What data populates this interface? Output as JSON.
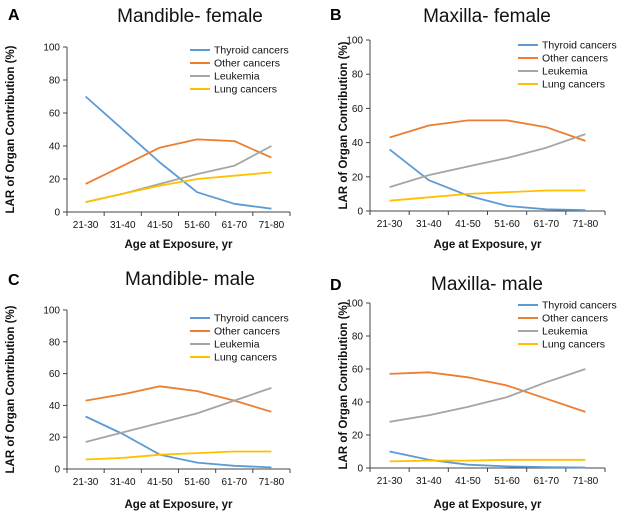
{
  "chart_data": [
    {
      "panel": "A",
      "type": "line",
      "title": "Mandible- female",
      "xlabel": "Age at Exposure, yr",
      "ylabel": "LAR of Organ Contribution (%)",
      "categories": [
        "21-30",
        "31-40",
        "41-50",
        "51-60",
        "61-70",
        "71-80"
      ],
      "ylim": [
        0,
        100
      ],
      "yticks": [
        0,
        20,
        40,
        60,
        80,
        100
      ],
      "legend_position": "top-right",
      "grid": false,
      "series": [
        {
          "name": "Thyroid cancers",
          "color": "#5B9BD5",
          "values": [
            70,
            50,
            30,
            12,
            5,
            2
          ]
        },
        {
          "name": "Other cancers",
          "color": "#ED7D31",
          "values": [
            17,
            28,
            39,
            44,
            43,
            33
          ]
        },
        {
          "name": "Leukemia",
          "color": "#A5A5A5",
          "values": [
            6,
            11,
            17,
            23,
            28,
            40
          ]
        },
        {
          "name": "Lung cancers",
          "color": "#FFC000",
          "values": [
            6,
            11,
            16,
            20,
            22,
            24
          ]
        }
      ]
    },
    {
      "panel": "B",
      "type": "line",
      "title": "Maxilla- female",
      "xlabel": "Age at Exposure, yr",
      "ylabel": "LAR of Organ Contribution (%)",
      "categories": [
        "21-30",
        "31-40",
        "41-50",
        "51-60",
        "61-70",
        "71-80"
      ],
      "ylim": [
        0,
        100
      ],
      "yticks": [
        0,
        20,
        40,
        60,
        80,
        100
      ],
      "legend_position": "top-right",
      "grid": false,
      "series": [
        {
          "name": "Thyroid cancers",
          "color": "#5B9BD5",
          "values": [
            36,
            18,
            9,
            3,
            1,
            0.5
          ]
        },
        {
          "name": "Other cancers",
          "color": "#ED7D31",
          "values": [
            43,
            50,
            53,
            53,
            49,
            41
          ]
        },
        {
          "name": "Leukemia",
          "color": "#A5A5A5",
          "values": [
            14,
            21,
            26,
            31,
            37,
            45
          ]
        },
        {
          "name": "Lung cancers",
          "color": "#FFC000",
          "values": [
            6,
            8,
            10,
            11,
            12,
            12
          ]
        }
      ]
    },
    {
      "panel": "C",
      "type": "line",
      "title": "Mandible- male",
      "xlabel": "Age at Exposure, yr",
      "ylabel": "LAR of Organ Contribution (%)",
      "categories": [
        "21-30",
        "31-40",
        "41-50",
        "51-60",
        "61-70",
        "71-80"
      ],
      "ylim": [
        0,
        100
      ],
      "yticks": [
        0,
        20,
        40,
        60,
        80,
        100
      ],
      "legend_position": "top-right",
      "grid": false,
      "series": [
        {
          "name": "Thyroid cancers",
          "color": "#5B9BD5",
          "values": [
            33,
            22,
            9,
            4,
            2,
            1
          ]
        },
        {
          "name": "Other cancers",
          "color": "#ED7D31",
          "values": [
            43,
            47,
            52,
            49,
            43,
            36
          ]
        },
        {
          "name": "Leukemia",
          "color": "#A5A5A5",
          "values": [
            17,
            23,
            29,
            35,
            43,
            51
          ]
        },
        {
          "name": "Lung cancers",
          "color": "#FFC000",
          "values": [
            6,
            7,
            9,
            10,
            11,
            11
          ]
        }
      ]
    },
    {
      "panel": "D",
      "type": "line",
      "title": "Maxilla- male",
      "xlabel": "Age at Exposure, yr",
      "ylabel": "LAR of Organ Contribution (%)",
      "categories": [
        "21-30",
        "31-40",
        "41-50",
        "51-60",
        "61-70",
        "71-80"
      ],
      "ylim": [
        0,
        100
      ],
      "yticks": [
        0,
        20,
        40,
        60,
        80,
        100
      ],
      "legend_position": "top-right",
      "grid": false,
      "series": [
        {
          "name": "Thyroid cancers",
          "color": "#5B9BD5",
          "values": [
            10,
            5,
            2,
            1,
            0.5,
            0.3
          ]
        },
        {
          "name": "Other cancers",
          "color": "#ED7D31",
          "values": [
            57,
            58,
            55,
            50,
            42,
            34
          ]
        },
        {
          "name": "Leukemia",
          "color": "#A5A5A5",
          "values": [
            28,
            32,
            37,
            43,
            52,
            60
          ]
        },
        {
          "name": "Lung cancers",
          "color": "#FFC000",
          "values": [
            4,
            4.5,
            4.5,
            5,
            5,
            5
          ]
        }
      ]
    }
  ]
}
